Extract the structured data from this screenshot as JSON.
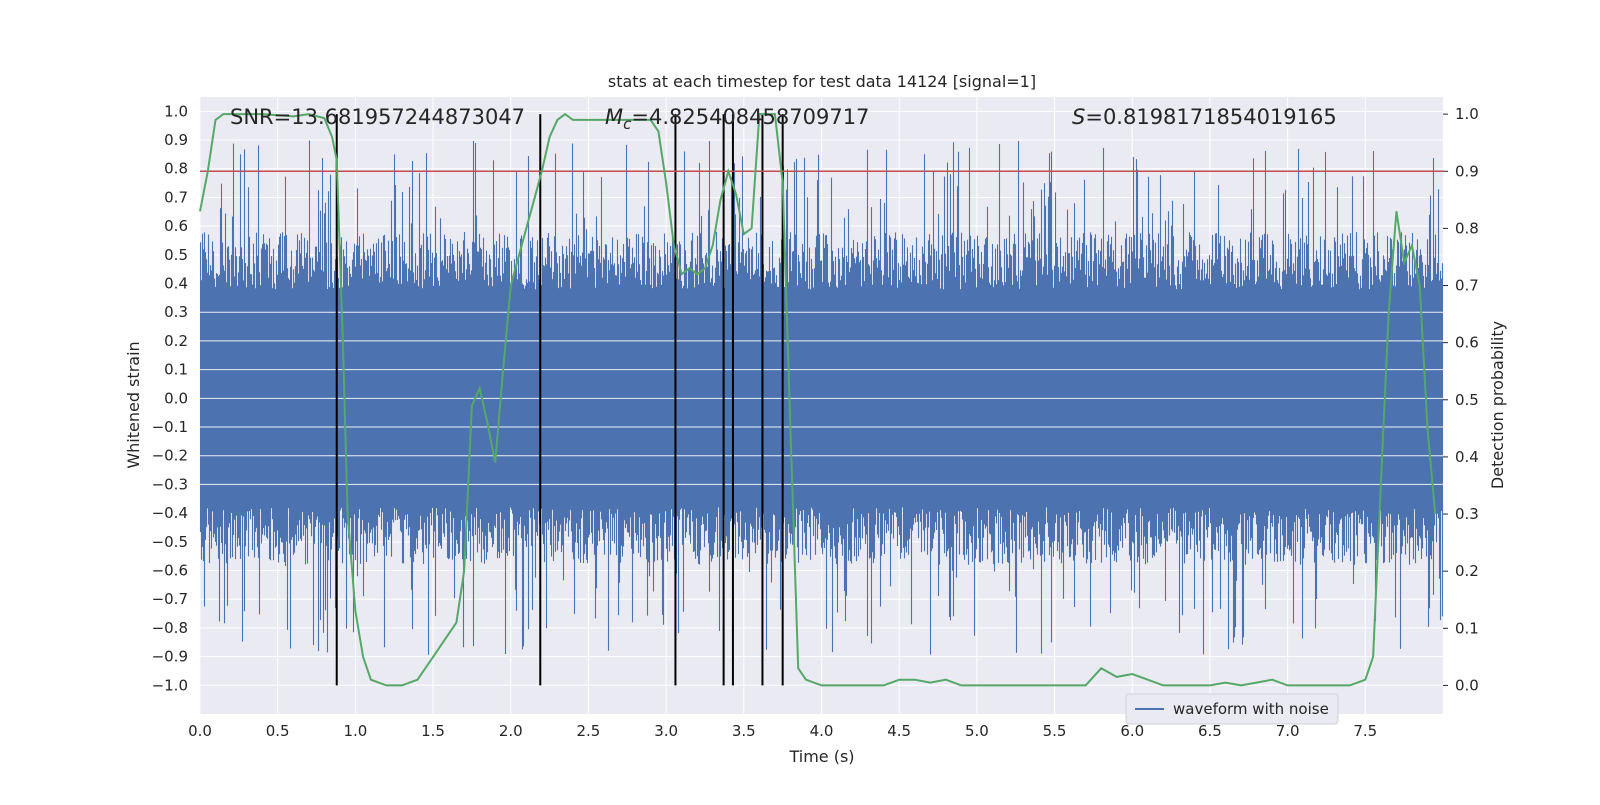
{
  "chart_data": {
    "type": "line",
    "title": "stats at each timestep for test data 14124 [signal=1]",
    "xlabel": "Time (s)",
    "ylabel": "Whitened strain",
    "ylabel_right": "Detection probability",
    "xlim": [
      0,
      8
    ],
    "ylim": [
      -1.1,
      1.05
    ],
    "ylim_right": [
      -0.05,
      1.03
    ],
    "x_ticks": [
      0.0,
      0.5,
      1.0,
      1.5,
      2.0,
      2.5,
      3.0,
      3.5,
      4.0,
      4.5,
      5.0,
      5.5,
      6.0,
      6.5,
      7.0,
      7.5
    ],
    "x_tick_labels": [
      "0.0",
      "0.5",
      "1.0",
      "1.5",
      "2.0",
      "2.5",
      "3.0",
      "3.5",
      "4.0",
      "4.5",
      "5.0",
      "5.5",
      "6.0",
      "6.5",
      "7.0",
      "7.5"
    ],
    "y_ticks": [
      1.0,
      0.9,
      0.8,
      0.7,
      0.6,
      0.5,
      0.4,
      0.3,
      0.2,
      0.1,
      0.0,
      -0.1,
      -0.2,
      -0.3,
      -0.4,
      -0.5,
      -0.6,
      -0.7,
      -0.8,
      -0.9,
      -1.0
    ],
    "y_tick_labels": [
      "1.0",
      "0.9",
      "0.8",
      "0.7",
      "0.6",
      "0.5",
      "0.4",
      "0.3",
      "0.2",
      "0.1",
      "0.0",
      "−0.1",
      "−0.2",
      "−0.3",
      "−0.4",
      "−0.5",
      "−0.6",
      "−0.7",
      "−0.8",
      "−0.9",
      "−1.0"
    ],
    "y_right_ticks": [
      1.0,
      0.9,
      0.8,
      0.7,
      0.6,
      0.5,
      0.4,
      0.3,
      0.2,
      0.1,
      0.0
    ],
    "y_right_tick_labels": [
      "1.0",
      "0.9",
      "0.8",
      "0.7",
      "0.6",
      "0.5",
      "0.4",
      "0.3",
      "0.2",
      "0.1",
      "0.0"
    ],
    "grid": true,
    "threshold": 0.9,
    "vertical_lines_x": [
      0.88,
      2.19,
      3.06,
      3.37,
      3.43,
      3.62,
      3.75
    ],
    "annotations": {
      "snr": "SNR=13.681957244873047",
      "mc_symbol": "M",
      "mc_subscript": "c",
      "mc_value": "=4.825408458709717",
      "s_symbol": "S",
      "s_value": "=0.8198171854019165"
    },
    "series": [
      {
        "name": "waveform with noise",
        "axis": "left",
        "description_envelope": "noise ±0.35 with spikes up to ~0.9",
        "band": [
          -0.35,
          0.35
        ]
      },
      {
        "name": "detection probability",
        "axis": "right",
        "x": [
          0.0,
          0.05,
          0.1,
          0.15,
          0.2,
          0.3,
          0.4,
          0.5,
          0.6,
          0.7,
          0.8,
          0.85,
          0.88,
          0.92,
          0.95,
          1.0,
          1.05,
          1.1,
          1.2,
          1.3,
          1.4,
          1.5,
          1.6,
          1.65,
          1.7,
          1.75,
          1.8,
          1.85,
          1.9,
          1.95,
          2.0,
          2.05,
          2.1,
          2.15,
          2.2,
          2.25,
          2.3,
          2.35,
          2.4,
          2.45,
          2.5,
          2.6,
          2.7,
          2.8,
          2.9,
          2.95,
          3.0,
          3.05,
          3.1,
          3.15,
          3.2,
          3.25,
          3.3,
          3.35,
          3.4,
          3.45,
          3.5,
          3.55,
          3.6,
          3.65,
          3.7,
          3.75,
          3.8,
          3.85,
          3.9,
          4.0,
          4.1,
          4.2,
          4.3,
          4.4,
          4.5,
          4.6,
          4.7,
          4.8,
          4.9,
          5.0,
          5.2,
          5.4,
          5.6,
          5.7,
          5.8,
          5.9,
          6.0,
          6.1,
          6.2,
          6.3,
          6.5,
          6.6,
          6.7,
          6.8,
          6.9,
          7.0,
          7.2,
          7.3,
          7.4,
          7.5,
          7.55,
          7.6,
          7.65,
          7.7,
          7.75,
          7.8,
          7.85,
          7.9,
          7.95
        ],
        "values": [
          0.83,
          0.9,
          0.99,
          1.0,
          1.0,
          1.0,
          1.0,
          0.998,
          0.996,
          1.0,
          0.993,
          0.96,
          0.92,
          0.6,
          0.3,
          0.13,
          0.05,
          0.01,
          0.0,
          0.0,
          0.01,
          0.05,
          0.09,
          0.11,
          0.2,
          0.49,
          0.52,
          0.46,
          0.39,
          0.55,
          0.7,
          0.75,
          0.8,
          0.85,
          0.9,
          0.96,
          0.99,
          1.0,
          0.99,
          0.99,
          0.99,
          0.99,
          0.99,
          0.99,
          0.99,
          0.97,
          0.88,
          0.77,
          0.72,
          0.73,
          0.72,
          0.73,
          0.77,
          0.85,
          0.9,
          0.86,
          0.79,
          0.8,
          1.0,
          1.0,
          1.0,
          0.88,
          0.45,
          0.03,
          0.01,
          0.0,
          0.0,
          0.0,
          0.0,
          0.0,
          0.01,
          0.01,
          0.005,
          0.01,
          0.0,
          0.0,
          0.0,
          0.0,
          0.0,
          0.0,
          0.03,
          0.015,
          0.02,
          0.01,
          0.0,
          0.0,
          0.0,
          0.005,
          0.0,
          0.005,
          0.01,
          0.0,
          0.0,
          0.0,
          0.0,
          0.01,
          0.05,
          0.35,
          0.65,
          0.83,
          0.74,
          0.77,
          0.7,
          0.45,
          0.3
        ]
      }
    ],
    "legend": {
      "label": "waveform with noise",
      "placement": "lower-right"
    }
  },
  "colors": {
    "plot_bg": "#eaeaf2",
    "grid": "#ffffff",
    "waveform": "#4c72b0",
    "probability": "#55a868",
    "threshold": "#c44e52",
    "vlines": "#000000"
  }
}
